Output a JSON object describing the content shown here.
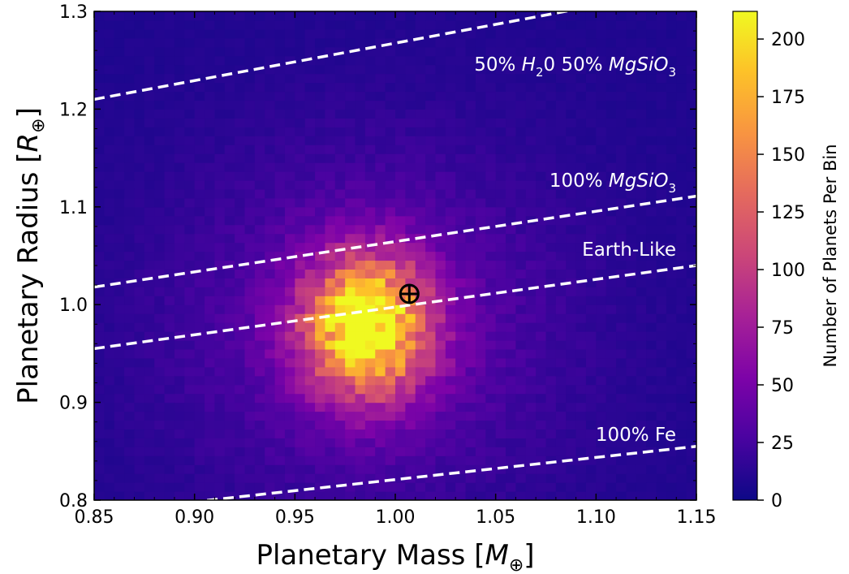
{
  "chart_data": {
    "type": "heatmap",
    "title": "",
    "xlabel": {
      "main": "Planetary Mass [",
      "italic": "M",
      "sub": "⊕",
      "close": "]"
    },
    "ylabel": {
      "main": "Planetary Radius [",
      "italic": "R",
      "sub": "⊕",
      "close": "]"
    },
    "xlim": [
      0.85,
      1.15
    ],
    "ylim": [
      0.8,
      1.3
    ],
    "x_ticks": [
      0.85,
      0.9,
      0.95,
      1.0,
      1.05,
      1.1,
      1.15
    ],
    "x_tick_labels": [
      "0.85",
      "0.90",
      "0.95",
      "1.00",
      "1.05",
      "1.10",
      "1.15"
    ],
    "y_ticks": [
      0.8,
      0.9,
      1.0,
      1.1,
      1.2,
      1.3
    ],
    "y_tick_labels": [
      "0.8",
      "0.9",
      "1.0",
      "1.1",
      "1.2",
      "1.3"
    ],
    "grid": false,
    "colormap": "plasma",
    "density": {
      "center_x": 0.986,
      "center_y": 0.978,
      "sigma_x": 0.022,
      "sigma_y": 0.05,
      "peak": 212,
      "background": 8,
      "x_bins": 60,
      "y_bins": 55
    },
    "colorbar": {
      "label": "Number of Planets Per Bin",
      "range": [
        0,
        212
      ],
      "ticks": [
        0,
        25,
        50,
        75,
        100,
        125,
        150,
        175,
        200
      ],
      "tick_labels": [
        "0",
        "25",
        "50",
        "75",
        "100",
        "125",
        "150",
        "175",
        "200"
      ]
    },
    "series": [
      {
        "name": "50% H2O 50% MgSiO3",
        "style": "dashed",
        "color": "#ffffff",
        "x": [
          0.85,
          1.15
        ],
        "y": [
          1.21,
          1.325
        ]
      },
      {
        "name": "100% MgSiO3",
        "style": "dashed",
        "color": "#ffffff",
        "x": [
          0.85,
          1.15
        ],
        "y": [
          1.018,
          1.111
        ]
      },
      {
        "name": "Earth-Like",
        "style": "dashed",
        "color": "#ffffff",
        "x": [
          0.85,
          1.15
        ],
        "y": [
          0.955,
          1.04
        ]
      },
      {
        "name": "100% Fe",
        "style": "dashed",
        "color": "#ffffff",
        "x": [
          0.85,
          1.15
        ],
        "y": [
          0.787,
          0.855
        ]
      }
    ],
    "annotations": [
      {
        "name": "earth-symbol",
        "text": "⊕",
        "x": 1.007,
        "y": 1.011
      }
    ],
    "line_labels": {
      "water": {
        "a": "50% ",
        "b": "H",
        "c": "2",
        "d": "0 50% ",
        "e": "MgSiO",
        "f": "3"
      },
      "mgsio3": {
        "a": "100% ",
        "e": "MgSiO",
        "f": "3"
      },
      "earth": "Earth-Like",
      "fe": "100% Fe"
    }
  }
}
